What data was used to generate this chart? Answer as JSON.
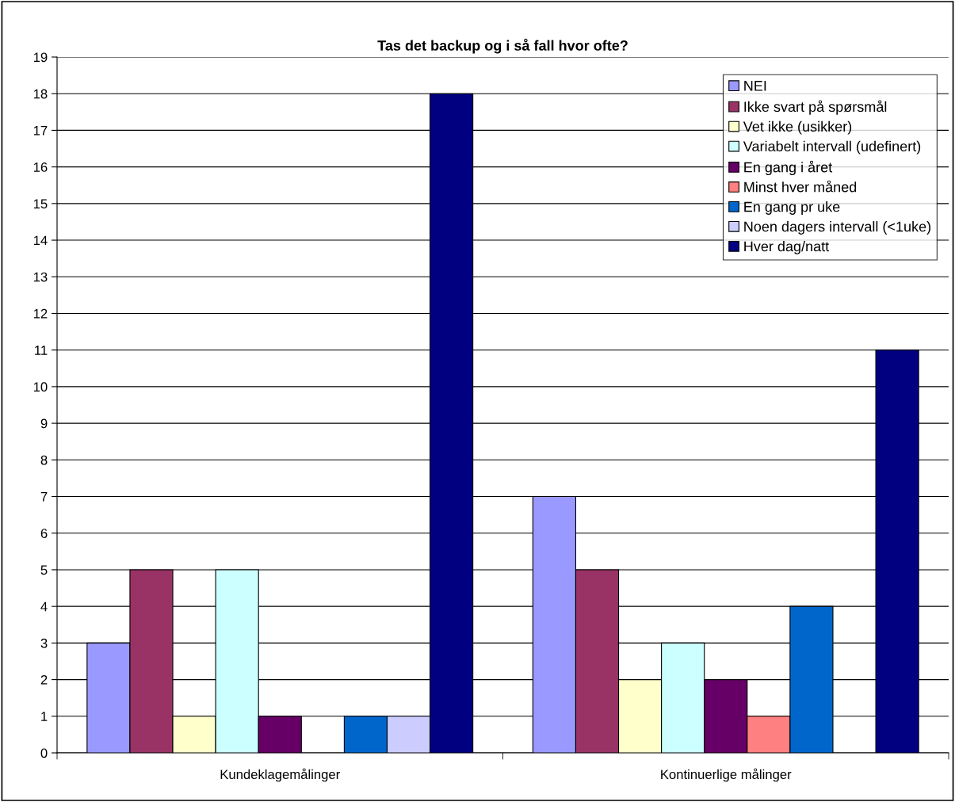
{
  "chart_data": {
    "type": "bar",
    "title": "Tas det backup og i så fall hvor ofte?",
    "categories": [
      "Kundeklagemålinger",
      "Kontinuerlige målinger"
    ],
    "series": [
      {
        "name": "NEI",
        "color": "#9999ff",
        "values": [
          3,
          7
        ]
      },
      {
        "name": "Ikke svart på spørsmål",
        "color": "#993366",
        "values": [
          5,
          5
        ]
      },
      {
        "name": "Vet ikke (usikker)",
        "color": "#ffffcc",
        "values": [
          1,
          2
        ]
      },
      {
        "name": "Variabelt intervall (udefinert)",
        "color": "#ccffff",
        "values": [
          5,
          3
        ]
      },
      {
        "name": "En gang i året",
        "color": "#660066",
        "values": [
          1,
          2
        ]
      },
      {
        "name": "Minst hver måned",
        "color": "#ff8080",
        "values": [
          0,
          1
        ]
      },
      {
        "name": "En gang pr uke",
        "color": "#0066cc",
        "values": [
          1,
          4
        ]
      },
      {
        "name": "Noen dagers intervall (<1uke)",
        "color": "#ccccff",
        "values": [
          1,
          0
        ]
      },
      {
        "name": "Hver dag/natt",
        "color": "#000080",
        "values": [
          18,
          11
        ]
      }
    ],
    "ylim": [
      0,
      19
    ],
    "yticks": [
      0,
      1,
      2,
      3,
      4,
      5,
      6,
      7,
      8,
      9,
      10,
      11,
      12,
      13,
      14,
      15,
      16,
      17,
      18,
      19
    ],
    "grid": "y",
    "legend": "top right"
  }
}
